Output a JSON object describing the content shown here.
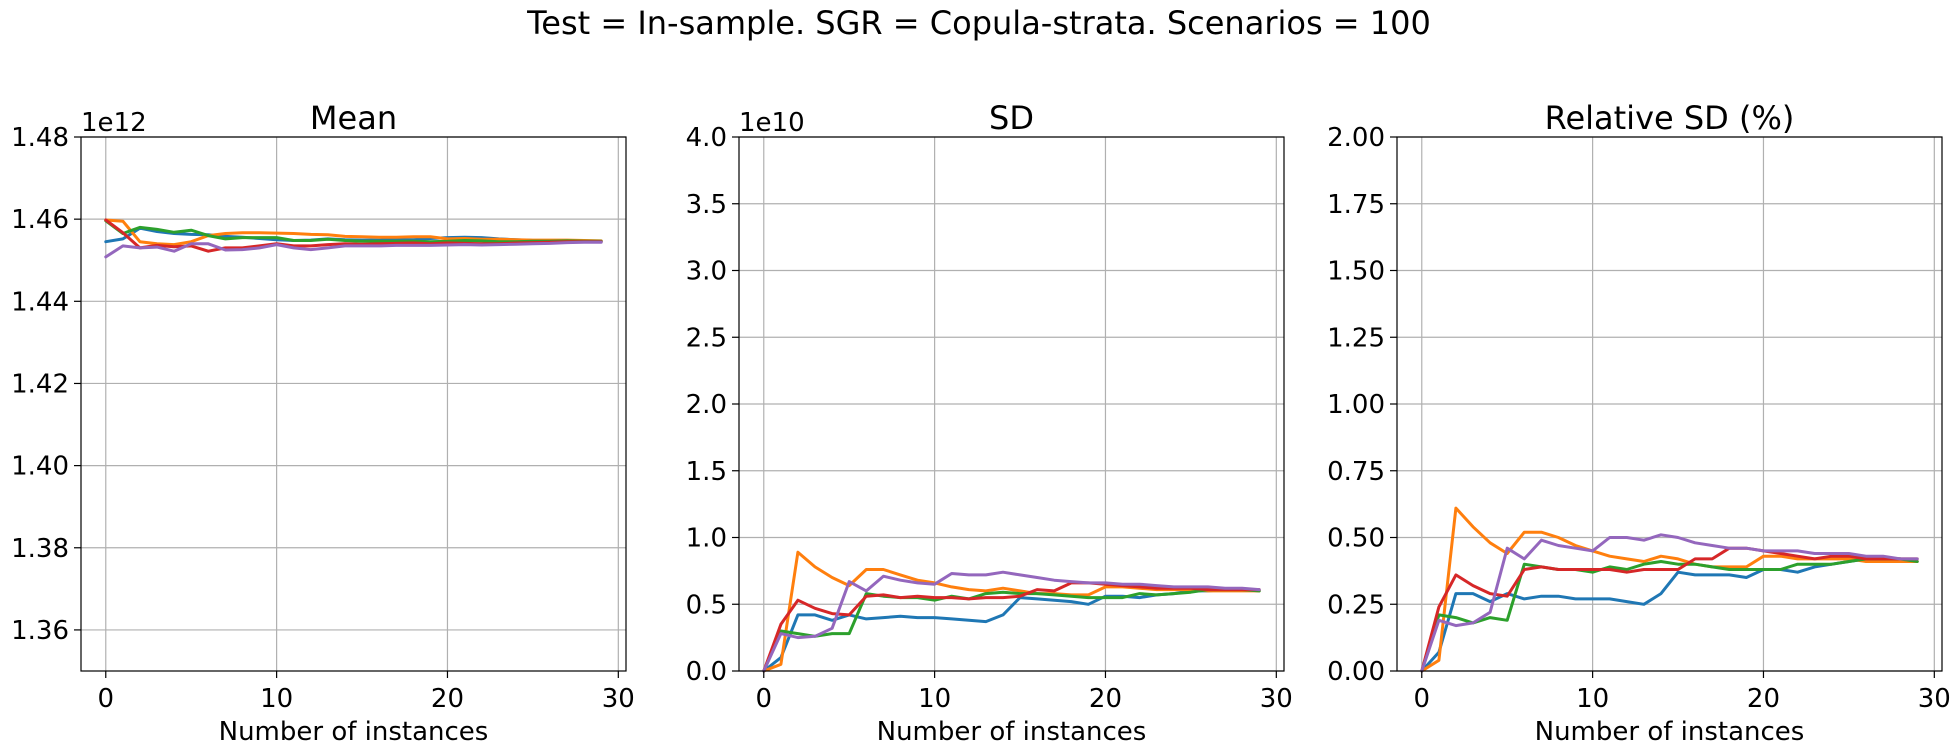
{
  "figure_title": "Test = In-sample. SGR = Copula-strata. Scenarios = 100",
  "colors": [
    "#1f77b4",
    "#ff7f0e",
    "#2ca02c",
    "#d62728",
    "#9467bd"
  ],
  "chart_data": [
    {
      "type": "line",
      "title": "Mean",
      "xlabel": "Number of instances",
      "ylabel": "",
      "offset_text": "1e12",
      "xlim": [
        -1.45,
        30.45
      ],
      "ylim": [
        1.35,
        1.48
      ],
      "xticks": [
        0,
        10,
        20,
        30
      ],
      "xtick_labels": [
        "0",
        "10",
        "20",
        "30"
      ],
      "yticks": [
        1.36,
        1.38,
        1.4,
        1.42,
        1.44,
        1.46,
        1.48
      ],
      "ytick_labels": [
        "1.36",
        "1.38",
        "1.40",
        "1.42",
        "1.44",
        "1.46",
        "1.48"
      ],
      "grid": true,
      "x": [
        0,
        1,
        2,
        3,
        4,
        5,
        6,
        7,
        8,
        9,
        10,
        11,
        12,
        13,
        14,
        15,
        16,
        17,
        18,
        19,
        20,
        21,
        22,
        23,
        24,
        25,
        26,
        27,
        28,
        29
      ],
      "series": [
        {
          "values": [
            1.4545,
            1.4552,
            1.4578,
            1.457,
            1.4565,
            1.4563,
            1.4562,
            1.4558,
            1.4556,
            1.4553,
            1.455,
            1.4548,
            1.4549,
            1.4552,
            1.455,
            1.4549,
            1.4549,
            1.455,
            1.455,
            1.4553,
            1.4555,
            1.4556,
            1.4555,
            1.4552,
            1.455,
            1.4548,
            1.4547,
            1.4547,
            1.4546,
            1.4546
          ]
        },
        {
          "values": [
            1.4598,
            1.4595,
            1.4545,
            1.454,
            1.4538,
            1.4545,
            1.456,
            1.4565,
            1.4567,
            1.4567,
            1.4566,
            1.4565,
            1.4563,
            1.4562,
            1.4558,
            1.4557,
            1.4556,
            1.4556,
            1.4557,
            1.4557,
            1.4552,
            1.4553,
            1.4551,
            1.4551,
            1.455,
            1.4549,
            1.4549,
            1.4549,
            1.4548,
            1.4547
          ]
        },
        {
          "values": [
            1.4596,
            1.4565,
            1.458,
            1.4575,
            1.4568,
            1.4573,
            1.456,
            1.4552,
            1.4555,
            1.4555,
            1.4555,
            1.4548,
            1.4548,
            1.4551,
            1.4548,
            1.4546,
            1.4546,
            1.4546,
            1.4546,
            1.4545,
            1.4546,
            1.4548,
            1.4547,
            1.4545,
            1.4545,
            1.4546,
            1.4546,
            1.4547,
            1.4546,
            1.4546
          ]
        },
        {
          "values": [
            1.4598,
            1.4567,
            1.453,
            1.4536,
            1.4533,
            1.4535,
            1.4522,
            1.453,
            1.453,
            1.4535,
            1.454,
            1.4535,
            1.4535,
            1.4538,
            1.454,
            1.4539,
            1.454,
            1.4541,
            1.4542,
            1.454,
            1.4542,
            1.4541,
            1.454,
            1.454,
            1.4542,
            1.4543,
            1.4544,
            1.4545,
            1.4545,
            1.4545
          ]
        },
        {
          "values": [
            1.4508,
            1.4535,
            1.453,
            1.4532,
            1.4522,
            1.454,
            1.454,
            1.4525,
            1.4526,
            1.453,
            1.4538,
            1.453,
            1.4526,
            1.453,
            1.4535,
            1.4535,
            1.4535,
            1.4536,
            1.4536,
            1.4536,
            1.4537,
            1.4538,
            1.4537,
            1.4538,
            1.4539,
            1.454,
            1.4541,
            1.4543,
            1.4544,
            1.4544
          ]
        }
      ]
    },
    {
      "type": "line",
      "title": "SD",
      "xlabel": "Number of instances",
      "ylabel": "",
      "offset_text": "1e10",
      "xlim": [
        -1.45,
        30.45
      ],
      "ylim": [
        0,
        4.0
      ],
      "xticks": [
        0,
        10,
        20,
        30
      ],
      "xtick_labels": [
        "0",
        "10",
        "20",
        "30"
      ],
      "yticks": [
        0,
        0.5,
        1.0,
        1.5,
        2.0,
        2.5,
        3.0,
        3.5,
        4.0
      ],
      "ytick_labels": [
        "0.0",
        "0.5",
        "1.0",
        "1.5",
        "2.0",
        "2.5",
        "3.0",
        "3.5",
        "4.0"
      ],
      "grid": true,
      "x": [
        0,
        1,
        2,
        3,
        4,
        5,
        6,
        7,
        8,
        9,
        10,
        11,
        12,
        13,
        14,
        15,
        16,
        17,
        18,
        19,
        20,
        21,
        22,
        23,
        24,
        25,
        26,
        27,
        28,
        29
      ],
      "series": [
        {
          "values": [
            0.0,
            0.1,
            0.42,
            0.42,
            0.38,
            0.42,
            0.39,
            0.4,
            0.41,
            0.4,
            0.4,
            0.39,
            0.38,
            0.37,
            0.42,
            0.55,
            0.54,
            0.53,
            0.52,
            0.5,
            0.56,
            0.56,
            0.55,
            0.57,
            0.58,
            0.6,
            0.6,
            0.61,
            0.61,
            0.6
          ]
        },
        {
          "values": [
            0.0,
            0.05,
            0.89,
            0.78,
            0.7,
            0.64,
            0.76,
            0.76,
            0.72,
            0.68,
            0.66,
            0.63,
            0.61,
            0.6,
            0.62,
            0.6,
            0.58,
            0.58,
            0.57,
            0.57,
            0.63,
            0.63,
            0.62,
            0.61,
            0.61,
            0.61,
            0.6,
            0.6,
            0.6,
            0.6
          ]
        },
        {
          "values": [
            0.0,
            0.3,
            0.28,
            0.26,
            0.28,
            0.28,
            0.58,
            0.56,
            0.55,
            0.55,
            0.53,
            0.56,
            0.54,
            0.58,
            0.59,
            0.58,
            0.58,
            0.57,
            0.56,
            0.55,
            0.55,
            0.55,
            0.58,
            0.57,
            0.58,
            0.59,
            0.61,
            0.61,
            0.61,
            0.6
          ]
        },
        {
          "values": [
            0.0,
            0.35,
            0.53,
            0.47,
            0.43,
            0.42,
            0.56,
            0.57,
            0.55,
            0.56,
            0.55,
            0.55,
            0.54,
            0.55,
            0.55,
            0.56,
            0.61,
            0.6,
            0.66,
            0.66,
            0.65,
            0.64,
            0.63,
            0.62,
            0.62,
            0.62,
            0.61,
            0.61,
            0.61,
            0.61
          ]
        },
        {
          "values": [
            0.0,
            0.28,
            0.25,
            0.26,
            0.32,
            0.67,
            0.6,
            0.71,
            0.68,
            0.66,
            0.65,
            0.73,
            0.72,
            0.72,
            0.74,
            0.72,
            0.7,
            0.68,
            0.67,
            0.66,
            0.66,
            0.65,
            0.65,
            0.64,
            0.63,
            0.63,
            0.63,
            0.62,
            0.62,
            0.61
          ]
        }
      ]
    },
    {
      "type": "line",
      "title": "Relative SD (%)",
      "xlabel": "Number of instances",
      "ylabel": "",
      "offset_text": "",
      "xlim": [
        -1.45,
        30.45
      ],
      "ylim": [
        0,
        2.0
      ],
      "xticks": [
        0,
        10,
        20,
        30
      ],
      "xtick_labels": [
        "0",
        "10",
        "20",
        "30"
      ],
      "yticks": [
        0,
        0.25,
        0.5,
        0.75,
        1.0,
        1.25,
        1.5,
        1.75,
        2.0
      ],
      "ytick_labels": [
        "0.00",
        "0.25",
        "0.50",
        "0.75",
        "1.00",
        "1.25",
        "1.50",
        "1.75",
        "2.00"
      ],
      "grid": true,
      "x": [
        0,
        1,
        2,
        3,
        4,
        5,
        6,
        7,
        8,
        9,
        10,
        11,
        12,
        13,
        14,
        15,
        16,
        17,
        18,
        19,
        20,
        21,
        22,
        23,
        24,
        25,
        26,
        27,
        28,
        29
      ],
      "series": [
        {
          "values": [
            0.0,
            0.07,
            0.29,
            0.29,
            0.26,
            0.29,
            0.27,
            0.28,
            0.28,
            0.27,
            0.27,
            0.27,
            0.26,
            0.25,
            0.29,
            0.37,
            0.36,
            0.36,
            0.36,
            0.35,
            0.38,
            0.38,
            0.37,
            0.39,
            0.4,
            0.41,
            0.42,
            0.42,
            0.42,
            0.41
          ]
        },
        {
          "values": [
            0.0,
            0.04,
            0.61,
            0.54,
            0.48,
            0.44,
            0.52,
            0.52,
            0.5,
            0.47,
            0.45,
            0.43,
            0.42,
            0.41,
            0.43,
            0.42,
            0.4,
            0.39,
            0.39,
            0.39,
            0.43,
            0.43,
            0.42,
            0.42,
            0.42,
            0.42,
            0.41,
            0.41,
            0.41,
            0.41
          ]
        },
        {
          "values": [
            0.0,
            0.21,
            0.2,
            0.18,
            0.2,
            0.19,
            0.4,
            0.39,
            0.38,
            0.38,
            0.37,
            0.39,
            0.38,
            0.4,
            0.41,
            0.4,
            0.4,
            0.39,
            0.38,
            0.38,
            0.38,
            0.38,
            0.4,
            0.4,
            0.4,
            0.41,
            0.42,
            0.42,
            0.42,
            0.41
          ]
        },
        {
          "values": [
            0.0,
            0.24,
            0.36,
            0.32,
            0.29,
            0.28,
            0.38,
            0.39,
            0.38,
            0.38,
            0.38,
            0.38,
            0.37,
            0.38,
            0.38,
            0.38,
            0.42,
            0.42,
            0.46,
            0.46,
            0.45,
            0.44,
            0.43,
            0.42,
            0.43,
            0.43,
            0.42,
            0.42,
            0.42,
            0.42
          ]
        },
        {
          "values": [
            0.0,
            0.19,
            0.17,
            0.18,
            0.22,
            0.46,
            0.42,
            0.49,
            0.47,
            0.46,
            0.45,
            0.5,
            0.5,
            0.49,
            0.51,
            0.5,
            0.48,
            0.47,
            0.46,
            0.46,
            0.45,
            0.45,
            0.45,
            0.44,
            0.44,
            0.44,
            0.43,
            0.43,
            0.42,
            0.42
          ]
        }
      ]
    }
  ]
}
